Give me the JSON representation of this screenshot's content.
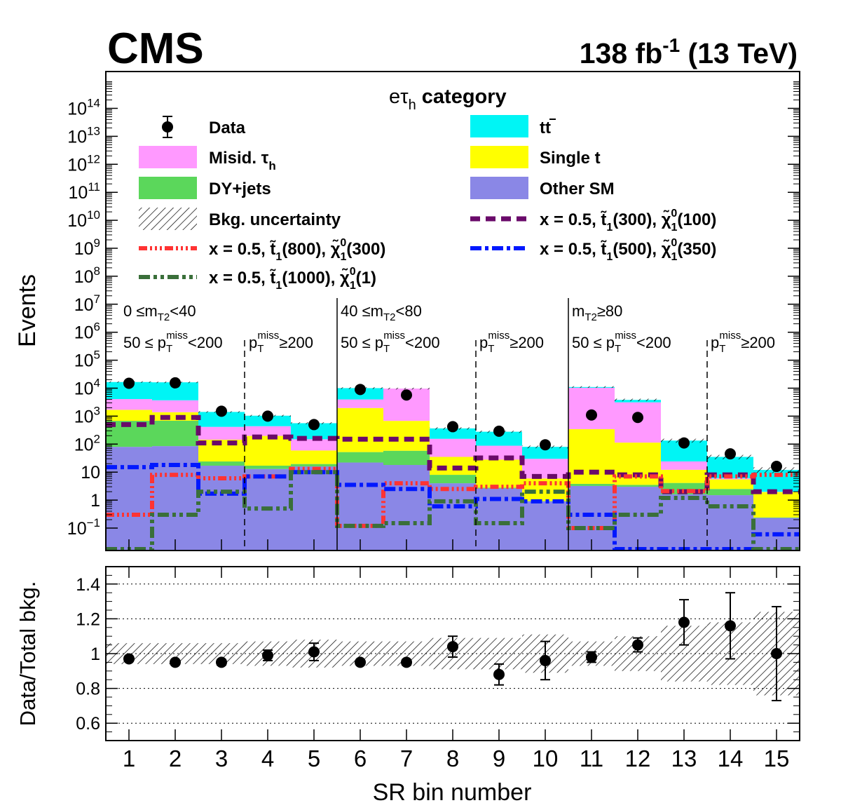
{
  "header": {
    "experiment": "CMS",
    "lumi_value": "138 fb",
    "lumi_exp": "-1",
    "energy": " (13 TeV)"
  },
  "category": {
    "prefix": "e",
    "tau": "τ",
    "sub": "h",
    "suffix": " category"
  },
  "legend": {
    "data": "Data",
    "ttbar": "tt",
    "misid": "Misid. τ",
    "misid_sub": "h",
    "single_t": "Single t",
    "dyjets": "DY+jets",
    "other_sm": "Other SM",
    "bkg_unc": "Bkg. uncertainty",
    "sig_prefix": "x = 0.5,",
    "sig_300_100": [
      "300",
      "100"
    ],
    "sig_800_300": [
      "800",
      "300"
    ],
    "sig_500_350": [
      "500",
      "350"
    ],
    "sig_1000_1": [
      "1000",
      "1"
    ]
  },
  "regions": {
    "mt2_a": [
      "0 ≤m",
      "T2",
      "<40"
    ],
    "mt2_b": [
      "40 ≤m",
      "T2",
      "<80"
    ],
    "mt2_c": [
      "m",
      "T2",
      "≥80"
    ],
    "pt_low": [
      "50 ≤ p",
      "T",
      "miss",
      "<200"
    ],
    "pt_high": [
      "p",
      "T",
      "miss",
      "≥200"
    ]
  },
  "colors": {
    "ttbar": "#00f5f5",
    "single_t": "#ffff00",
    "misid": "#ff99ff",
    "dyjets": "#5bd75b",
    "other_sm": "#8a87e6",
    "sig_300_100": "#6a0a6a",
    "sig_800_300": "#ff3333",
    "sig_500_350": "#0018ff",
    "sig_1000_1": "#3a6f3a"
  },
  "chart_data": [
    {
      "type": "bar",
      "stacked": true,
      "log_y": true,
      "ylabel": "Events",
      "ylim": [
        0.015,
        100000000000000
      ],
      "y_ticks": [
        0.1,
        1,
        10,
        100,
        1000,
        10000,
        100000,
        1000000,
        10000000,
        100000000,
        1000000000,
        10000000000,
        100000000000,
        1000000000000,
        10000000000000,
        100000000000000
      ],
      "y_tick_labels": [
        [
          "10",
          "−1"
        ],
        [
          "1",
          ""
        ],
        [
          "10",
          ""
        ],
        [
          "10",
          "2"
        ],
        [
          "10",
          "3"
        ],
        [
          "10",
          "4"
        ],
        [
          "10",
          "5"
        ],
        [
          "10",
          "6"
        ],
        [
          "10",
          "7"
        ],
        [
          "10",
          "8"
        ],
        [
          "10",
          "9"
        ],
        [
          "10",
          "10"
        ],
        [
          "10",
          "11"
        ],
        [
          "10",
          "12"
        ],
        [
          "10",
          "13"
        ],
        [
          "10",
          "14"
        ]
      ],
      "categories": [
        1,
        2,
        3,
        4,
        5,
        6,
        7,
        8,
        9,
        10,
        11,
        12,
        13,
        14,
        15
      ],
      "series": [
        {
          "name": "Other SM",
          "values": [
            80,
            85,
            17,
            13,
            16,
            22,
            18,
            4,
            2.6,
            0.9,
            3.2,
            3.0,
            1.6,
            1.5,
            0.23
          ]
        },
        {
          "name": "DY+jets",
          "values": [
            600,
            600,
            7,
            4,
            3.5,
            30,
            40,
            4,
            0.2,
            0.03,
            0.6,
            0.5,
            2.5,
            1.0,
            0.01
          ]
        },
        {
          "name": "Single t",
          "values": [
            1000,
            700,
            120,
            180,
            40,
            1900,
            620,
            27,
            25,
            5,
            340,
            110,
            8,
            3,
            1.7
          ]
        },
        {
          "name": "Misid. τh",
          "values": [
            2400,
            2300,
            270,
            240,
            90,
            2000,
            9000,
            120,
            60,
            24,
            10000,
            3000,
            12,
            0.5,
            0.04
          ]
        },
        {
          "name": "tt",
          "values": [
            12500,
            12500,
            1000,
            600,
            410,
            6100,
            0,
            210,
            190,
            50,
            650,
            700,
            110,
            29,
            10
          ]
        }
      ],
      "data": {
        "name": "Data",
        "values": [
          15000,
          15500,
          1500,
          1000,
          500,
          9000,
          5700,
          420,
          290,
          95,
          1100,
          900,
          110,
          45,
          16
        ]
      },
      "signals": [
        {
          "name": "x = 0.5, t1(300), χ1(100)",
          "values": [
            500,
            900,
            110,
            180,
            160,
            150,
            150,
            14,
            32,
            7,
            10,
            8,
            2,
            8,
            2
          ]
        },
        {
          "name": "x = 0.5, t1(800), χ1(300)",
          "values": [
            0.3,
            8,
            6,
            7,
            13,
            0.12,
            4,
            2.5,
            3,
            4,
            0.1,
            7,
            2.1,
            7,
            8
          ]
        },
        {
          "name": "x = 0.5, t1(500), χ1(350)",
          "values": [
            15,
            18,
            1.7,
            7,
            10,
            3.5,
            2.5,
            0.6,
            1.1,
            0.9,
            0.3,
            0.015,
            0.015,
            0.015,
            0.06
          ]
        },
        {
          "name": "x = 0.5, t1(1000), χ1(1)",
          "values": [
            0.015,
            0.3,
            2,
            0.5,
            10,
            0.12,
            0.15,
            0.9,
            0.15,
            2,
            0.1,
            0.3,
            1.2,
            0.6,
            0.015
          ]
        }
      ],
      "region_boundaries": [
        5.5,
        10.5
      ],
      "pt_boundaries": [
        3.5,
        8.5,
        13.5
      ]
    },
    {
      "type": "scatter",
      "xlabel": "SR bin number",
      "ylabel": "Data/Total bkg.",
      "ylim": [
        0.5,
        1.5
      ],
      "y_ticks": [
        0.6,
        0.8,
        1,
        1.2,
        1.4
      ],
      "x": [
        1,
        2,
        3,
        4,
        5,
        6,
        7,
        8,
        9,
        10,
        11,
        12,
        13,
        14,
        15
      ],
      "ratio": [
        0.97,
        0.95,
        0.95,
        0.99,
        1.01,
        0.95,
        0.95,
        1.04,
        0.88,
        0.96,
        0.98,
        1.05,
        1.18,
        1.16,
        1.0
      ],
      "err": [
        0.01,
        0.01,
        0.015,
        0.03,
        0.05,
        0.01,
        0.015,
        0.06,
        0.06,
        0.11,
        0.03,
        0.04,
        0.13,
        0.19,
        0.27
      ],
      "bkg_unc": [
        0.06,
        0.06,
        0.06,
        0.07,
        0.08,
        0.07,
        0.07,
        0.09,
        0.09,
        0.11,
        0.07,
        0.1,
        0.16,
        0.18,
        0.24
      ]
    }
  ]
}
